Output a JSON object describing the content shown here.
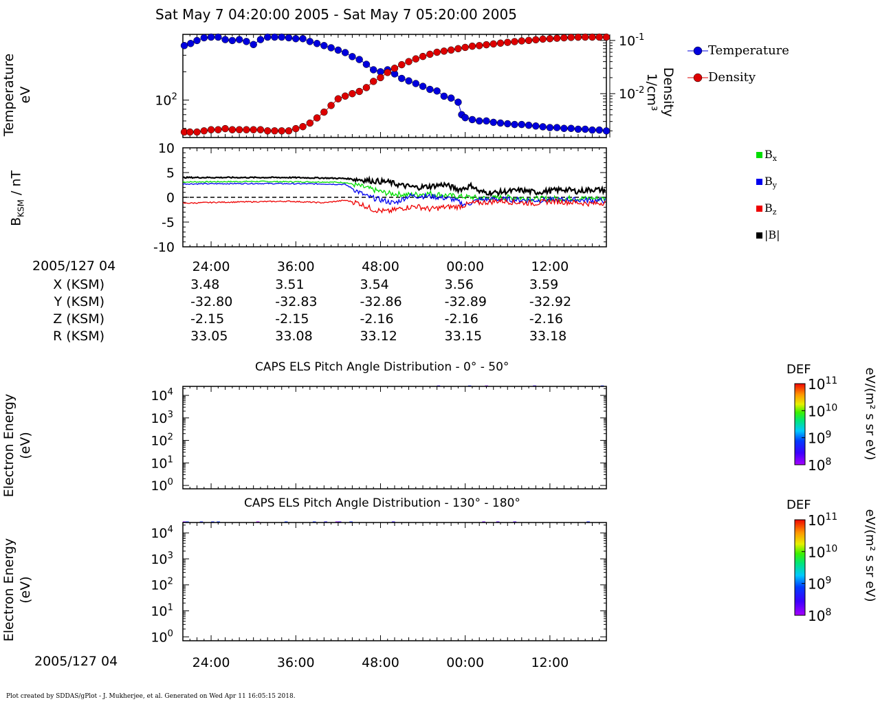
{
  "header": {
    "title": "Sat May 7 04:20:00 2005 - Sat May 7 05:20:00 2005"
  },
  "footer": {
    "text": "Plot created by SDDAS/gPlot - J. Mukherjee, et al.  Generated on Wed Apr 11 16:05:15 2018."
  },
  "colors": {
    "temperature": "#0000dd",
    "density": "#dd0000",
    "bx": "#00dd00",
    "by": "#0000ee",
    "bz": "#ee0000",
    "bmag": "#000000"
  },
  "chart_data": [
    {
      "id": "moments",
      "type": "scatter",
      "ylabel_left": [
        "Temperature",
        "eV"
      ],
      "ylabel_right": [
        "Density",
        "1/cm³"
      ],
      "left_ticks": [
        {
          "label": "10",
          "exp": "2",
          "value": 100
        }
      ],
      "right_ticks": [
        {
          "label": "10",
          "exp": "-1",
          "value": 0.1
        },
        {
          "label": "10",
          "exp": "-2",
          "value": 0.01
        }
      ],
      "left_ylim": [
        40,
        500
      ],
      "right_ylim": [
        0.0015,
        0.13
      ],
      "x_minutes": [
        20,
        80
      ],
      "series": [
        {
          "name": "Temperature",
          "color": "#0000dd",
          "points": [
            [
              20.2,
              380
            ],
            [
              21.1,
              400
            ],
            [
              22,
              430
            ],
            [
              23,
              460
            ],
            [
              24,
              470
            ],
            [
              25,
              470
            ],
            [
              26,
              440
            ],
            [
              27,
              430
            ],
            [
              28,
              440
            ],
            [
              29,
              420
            ],
            [
              30,
              390
            ],
            [
              31,
              440
            ],
            [
              32,
              470
            ],
            [
              33,
              470
            ],
            [
              34,
              480
            ],
            [
              35,
              460
            ],
            [
              36,
              450
            ],
            [
              37,
              450
            ],
            [
              38,
              420
            ],
            [
              39,
              400
            ],
            [
              40,
              380
            ],
            [
              41,
              360
            ],
            [
              42,
              340
            ],
            [
              43,
              320
            ],
            [
              44,
              290
            ],
            [
              45,
              270
            ],
            [
              46,
              240
            ],
            [
              47,
              210
            ],
            [
              48,
              200
            ],
            [
              49,
              210
            ],
            [
              50,
              190
            ],
            [
              51,
              170
            ],
            [
              52,
              160
            ],
            [
              53,
              150
            ],
            [
              54,
              140
            ],
            [
              55,
              130
            ],
            [
              56,
              125
            ],
            [
              57,
              110
            ],
            [
              58,
              105
            ],
            [
              59,
              95
            ],
            [
              59.5,
              70
            ],
            [
              60,
              65
            ],
            [
              61,
              62
            ],
            [
              62,
              60
            ],
            [
              63,
              60
            ],
            [
              64,
              58
            ],
            [
              65,
              57
            ],
            [
              66,
              56
            ],
            [
              67,
              55
            ],
            [
              68,
              55
            ],
            [
              69,
              54
            ],
            [
              70,
              53
            ],
            [
              71,
              52
            ],
            [
              72,
              51
            ],
            [
              73,
              51
            ],
            [
              74,
              50
            ],
            [
              75,
              50
            ],
            [
              76,
              49
            ],
            [
              77,
              49
            ],
            [
              78,
              48
            ],
            [
              79,
              48
            ],
            [
              80,
              47
            ]
          ]
        },
        {
          "name": "Density",
          "color": "#dd0000",
          "points": [
            [
              20.2,
              0.0019
            ],
            [
              21,
              0.0019
            ],
            [
              22,
              0.0019
            ],
            [
              23,
              0.002
            ],
            [
              24,
              0.0021
            ],
            [
              25,
              0.0021
            ],
            [
              26,
              0.0022
            ],
            [
              27,
              0.0021
            ],
            [
              28,
              0.0021
            ],
            [
              29,
              0.0021
            ],
            [
              30,
              0.0021
            ],
            [
              31,
              0.0021
            ],
            [
              32,
              0.002
            ],
            [
              33,
              0.002
            ],
            [
              34,
              0.002
            ],
            [
              35,
              0.002
            ],
            [
              36,
              0.0022
            ],
            [
              37,
              0.0024
            ],
            [
              38,
              0.0028
            ],
            [
              39,
              0.0035
            ],
            [
              40,
              0.0045
            ],
            [
              41,
              0.006
            ],
            [
              42,
              0.008
            ],
            [
              43,
              0.009
            ],
            [
              44,
              0.01
            ],
            [
              45,
              0.011
            ],
            [
              46,
              0.013
            ],
            [
              47,
              0.017
            ],
            [
              48,
              0.02
            ],
            [
              49,
              0.025
            ],
            [
              50,
              0.03
            ],
            [
              51,
              0.035
            ],
            [
              52,
              0.04
            ],
            [
              53,
              0.045
            ],
            [
              54,
              0.05
            ],
            [
              55,
              0.055
            ],
            [
              56,
              0.06
            ],
            [
              57,
              0.063
            ],
            [
              58,
              0.066
            ],
            [
              59,
              0.07
            ],
            [
              60,
              0.074
            ],
            [
              61,
              0.078
            ],
            [
              62,
              0.08
            ],
            [
              63,
              0.083
            ],
            [
              64,
              0.086
            ],
            [
              65,
              0.089
            ],
            [
              66,
              0.092
            ],
            [
              67,
              0.095
            ],
            [
              68,
              0.098
            ],
            [
              69,
              0.1
            ],
            [
              70,
              0.103
            ],
            [
              71,
              0.106
            ],
            [
              72,
              0.108
            ],
            [
              73,
              0.11
            ],
            [
              74,
              0.112
            ],
            [
              75,
              0.114
            ],
            [
              76,
              0.115
            ],
            [
              77,
              0.116
            ],
            [
              78,
              0.117
            ],
            [
              79,
              0.118
            ],
            [
              80,
              0.119
            ]
          ]
        }
      ],
      "legend": [
        {
          "name": "Temperature",
          "color": "#0000dd"
        },
        {
          "name": "Density",
          "color": "#dd0000"
        }
      ]
    },
    {
      "id": "magnetic",
      "type": "line",
      "ylabel": "B",
      "ylabel_sub": "KSM",
      "ylabel_unit": " / nT",
      "ylim": [
        -10,
        10
      ],
      "yticks": [
        "10",
        "5",
        "0",
        "-5",
        "-10"
      ],
      "x_minutes": [
        20,
        80
      ],
      "series": [
        {
          "name": "B",
          "sub": "x",
          "color": "#00dd00",
          "points": [
            [
              20,
              3.1
            ],
            [
              30,
              3.2
            ],
            [
              40,
              3.1
            ],
            [
              43,
              3.0
            ],
            [
              45,
              2.3
            ],
            [
              47,
              1.5
            ],
            [
              49,
              0.8
            ],
            [
              52,
              0.5
            ],
            [
              55,
              0.8
            ],
            [
              58,
              0.3
            ],
            [
              60,
              0.1
            ],
            [
              63,
              -0.2
            ],
            [
              66,
              0.0
            ],
            [
              70,
              -0.3
            ],
            [
              75,
              -0.2
            ],
            [
              80,
              -0.3
            ]
          ]
        },
        {
          "name": "B",
          "sub": "y",
          "color": "#0000ee",
          "points": [
            [
              20,
              2.7
            ],
            [
              30,
              2.8
            ],
            [
              40,
              2.7
            ],
            [
              43,
              2.6
            ],
            [
              45,
              1.0
            ],
            [
              46,
              0.2
            ],
            [
              48,
              -0.5
            ],
            [
              50,
              -1.2
            ],
            [
              52,
              0.3
            ],
            [
              55,
              0.2
            ],
            [
              58,
              -0.3
            ],
            [
              60,
              -1.5
            ],
            [
              62,
              -0.5
            ],
            [
              65,
              -0.4
            ],
            [
              70,
              -0.6
            ],
            [
              75,
              -0.5
            ],
            [
              80,
              -0.7
            ]
          ]
        },
        {
          "name": "B",
          "sub": "z",
          "color": "#ee0000",
          "points": [
            [
              20,
              -1.2
            ],
            [
              25,
              -1.0
            ],
            [
              30,
              -0.9
            ],
            [
              35,
              -0.8
            ],
            [
              40,
              -1.1
            ],
            [
              43,
              -0.6
            ],
            [
              45,
              -1.2
            ],
            [
              47,
              -2.5
            ],
            [
              49,
              -2.9
            ],
            [
              51,
              -2.2
            ],
            [
              53,
              -1.8
            ],
            [
              55,
              -2.4
            ],
            [
              57,
              -2.0
            ],
            [
              59,
              -1.9
            ],
            [
              61,
              -1.2
            ],
            [
              63,
              -1.0
            ],
            [
              65,
              -0.7
            ],
            [
              67,
              -1.0
            ],
            [
              70,
              -1.2
            ],
            [
              72,
              -0.8
            ],
            [
              75,
              -1.0
            ],
            [
              78,
              -1.3
            ],
            [
              80,
              -1.0
            ]
          ]
        },
        {
          "name": "|B|",
          "sub": "",
          "color": "#000000",
          "points": [
            [
              20,
              4.0
            ],
            [
              25,
              4.0
            ],
            [
              30,
              4.0
            ],
            [
              35,
              4.0
            ],
            [
              40,
              3.9
            ],
            [
              43,
              3.8
            ],
            [
              45,
              3.6
            ],
            [
              47,
              3.3
            ],
            [
              49,
              3.1
            ],
            [
              51,
              2.4
            ],
            [
              53,
              2.0
            ],
            [
              55,
              2.2
            ],
            [
              57,
              2.6
            ],
            [
              59,
              1.6
            ],
            [
              60,
              1.9
            ],
            [
              61,
              2.4
            ],
            [
              62,
              1.1
            ],
            [
              64,
              0.9
            ],
            [
              66,
              1.2
            ],
            [
              68,
              1.4
            ],
            [
              70,
              1.0
            ],
            [
              72,
              1.3
            ],
            [
              74,
              1.6
            ],
            [
              76,
              1.2
            ],
            [
              78,
              1.6
            ],
            [
              80,
              1.4
            ]
          ]
        }
      ],
      "zero_line": 0
    },
    {
      "id": "els_0_50",
      "type": "heatmap",
      "title": "CAPS ELS Pitch Angle Distribution - 0° - 50°",
      "ylabel": [
        "Electron Energy",
        "(eV)"
      ],
      "yticks": [
        {
          "label": "10",
          "exp": "4"
        },
        {
          "label": "10",
          "exp": "3"
        },
        {
          "label": "10",
          "exp": "2"
        },
        {
          "label": "10",
          "exp": "1"
        },
        {
          "label": "10",
          "exp": "0"
        }
      ],
      "x_minutes": [
        20,
        80
      ],
      "colorbar": {
        "label": "DEF",
        "unit": "eV/(m² s sr eV)",
        "ticks": [
          {
            "label": "10",
            "exp": "11"
          },
          {
            "label": "10",
            "exp": "10"
          },
          {
            "label": "10",
            "exp": "9"
          },
          {
            "label": "10",
            "exp": "8"
          }
        ]
      }
    },
    {
      "id": "els_130_180",
      "type": "heatmap",
      "title": "CAPS ELS Pitch Angle Distribution - 130° - 180°",
      "ylabel": [
        "Electron Energy",
        "(eV)"
      ],
      "yticks": [
        {
          "label": "10",
          "exp": "4"
        },
        {
          "label": "10",
          "exp": "3"
        },
        {
          "label": "10",
          "exp": "2"
        },
        {
          "label": "10",
          "exp": "1"
        },
        {
          "label": "10",
          "exp": "0"
        }
      ],
      "x_minutes": [
        20,
        80
      ],
      "colorbar": {
        "label": "DEF",
        "unit": "eV/(m² s sr eV)",
        "ticks": [
          {
            "label": "10",
            "exp": "11"
          },
          {
            "label": "10",
            "exp": "10"
          },
          {
            "label": "10",
            "exp": "9"
          },
          {
            "label": "10",
            "exp": "8"
          }
        ]
      }
    }
  ],
  "time_axis": {
    "ticks": [
      "24:00",
      "36:00",
      "48:00",
      "00:00",
      "12:00"
    ],
    "tick_minutes": [
      24,
      36,
      48,
      60,
      72
    ]
  },
  "orbit": {
    "start_label": "2005/127 04",
    "rows": [
      {
        "label": "X (KSM)",
        "values": [
          "3.48",
          "3.51",
          "3.54",
          "3.56",
          "3.59"
        ]
      },
      {
        "label": "Y (KSM)",
        "values": [
          "-32.80",
          "-32.83",
          "-32.86",
          "-32.89",
          "-32.92"
        ]
      },
      {
        "label": "Z (KSM)",
        "values": [
          "-2.15",
          "-2.15",
          "-2.16",
          "-2.16",
          "-2.16"
        ]
      },
      {
        "label": "R (KSM)",
        "values": [
          "33.05",
          "33.08",
          "33.12",
          "33.15",
          "33.18"
        ]
      }
    ]
  },
  "bottom_axis": {
    "start_label": "2005/127 04"
  }
}
